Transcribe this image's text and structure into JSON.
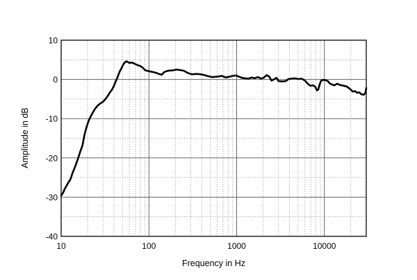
{
  "chart_data": {
    "type": "line",
    "xlabel": "Frequency in Hz",
    "ylabel": "Amplitude in dB",
    "x_scale": "log",
    "xlim": [
      10,
      30000
    ],
    "ylim": [
      -40,
      10
    ],
    "x_ticks": [
      10,
      100,
      1000,
      10000
    ],
    "x_tick_labels": [
      "10",
      "100",
      "1000",
      "10000"
    ],
    "y_ticks": [
      10,
      0,
      -10,
      -20,
      -30,
      -40
    ],
    "y_tick_labels": [
      "10",
      "0",
      "-10",
      "-20",
      "-30",
      "-40"
    ],
    "grid": true,
    "series": [
      {
        "name": "",
        "color": "#000000",
        "points": [
          [
            10,
            -29.6
          ],
          [
            10.5,
            -28.9
          ],
          [
            11,
            -27.9
          ],
          [
            11.5,
            -27.1
          ],
          [
            12,
            -26.4
          ],
          [
            12.8,
            -25.4
          ],
          [
            13.5,
            -23.8
          ],
          [
            14.5,
            -22.1
          ],
          [
            15.5,
            -20.3
          ],
          [
            16.5,
            -18.4
          ],
          [
            17.5,
            -16.8
          ],
          [
            18.5,
            -14.0
          ],
          [
            19.5,
            -12.1
          ],
          [
            20.5,
            -10.6
          ],
          [
            21.5,
            -9.6
          ],
          [
            23,
            -8.4
          ],
          [
            24.5,
            -7.4
          ],
          [
            26,
            -6.7
          ],
          [
            28,
            -6.1
          ],
          [
            30,
            -5.7
          ],
          [
            32,
            -5.0
          ],
          [
            34,
            -4.2
          ],
          [
            36,
            -3.3
          ],
          [
            38,
            -2.6
          ],
          [
            40,
            -1.6
          ],
          [
            42,
            -0.4
          ],
          [
            44,
            0.6
          ],
          [
            46,
            1.8
          ],
          [
            48,
            2.6
          ],
          [
            50,
            3.4
          ],
          [
            52,
            4.1
          ],
          [
            54,
            4.5
          ],
          [
            56,
            4.6
          ],
          [
            58,
            4.4
          ],
          [
            60,
            4.2
          ],
          [
            63,
            4.3
          ],
          [
            66,
            4.2
          ],
          [
            70,
            3.9
          ],
          [
            75,
            3.6
          ],
          [
            80,
            3.4
          ],
          [
            85,
            3.0
          ],
          [
            90,
            2.4
          ],
          [
            95,
            2.2
          ],
          [
            100,
            2.1
          ],
          [
            110,
            1.9
          ],
          [
            120,
            1.7
          ],
          [
            130,
            1.4
          ],
          [
            140,
            1.2
          ],
          [
            150,
            1.9
          ],
          [
            165,
            2.2
          ],
          [
            185,
            2.3
          ],
          [
            205,
            2.5
          ],
          [
            225,
            2.4
          ],
          [
            250,
            2.2
          ],
          [
            280,
            1.6
          ],
          [
            310,
            1.3
          ],
          [
            350,
            1.4
          ],
          [
            390,
            1.3
          ],
          [
            430,
            1.1
          ],
          [
            480,
            0.8
          ],
          [
            530,
            0.6
          ],
          [
            600,
            0.7
          ],
          [
            680,
            0.9
          ],
          [
            750,
            0.5
          ],
          [
            830,
            0.7
          ],
          [
            900,
            0.9
          ],
          [
            980,
            1.0
          ],
          [
            1060,
            0.7
          ],
          [
            1150,
            0.4
          ],
          [
            1250,
            0.3
          ],
          [
            1360,
            0.2
          ],
          [
            1480,
            0.5
          ],
          [
            1600,
            0.3
          ],
          [
            1750,
            0.6
          ],
          [
            1900,
            0.2
          ],
          [
            2050,
            0.5
          ],
          [
            2200,
            1.1
          ],
          [
            2350,
            0.7
          ],
          [
            2500,
            -0.3
          ],
          [
            2700,
            0.1
          ],
          [
            2850,
            0.4
          ],
          [
            3000,
            -0.4
          ],
          [
            3300,
            -0.5
          ],
          [
            3650,
            -0.4
          ],
          [
            3900,
            0.1
          ],
          [
            4200,
            0.2
          ],
          [
            4600,
            0.3
          ],
          [
            5000,
            0.1
          ],
          [
            5500,
            0.2
          ],
          [
            6000,
            -0.3
          ],
          [
            6400,
            -1.0
          ],
          [
            6900,
            -1.6
          ],
          [
            7400,
            -1.5
          ],
          [
            7900,
            -1.9
          ],
          [
            8200,
            -2.8
          ],
          [
            8500,
            -2.6
          ],
          [
            8800,
            -1.3
          ],
          [
            9200,
            -0.3
          ],
          [
            9700,
            -0.1
          ],
          [
            10300,
            -0.2
          ],
          [
            10900,
            -0.4
          ],
          [
            11500,
            -1.0
          ],
          [
            12200,
            -1.3
          ],
          [
            13000,
            -1.5
          ],
          [
            14000,
            -1.1
          ],
          [
            15000,
            -1.4
          ],
          [
            16500,
            -1.6
          ],
          [
            18000,
            -1.8
          ],
          [
            19500,
            -2.4
          ],
          [
            21000,
            -3.1
          ],
          [
            22500,
            -3.0
          ],
          [
            23500,
            -3.4
          ],
          [
            25000,
            -3.3
          ],
          [
            26500,
            -3.8
          ],
          [
            28000,
            -3.9
          ],
          [
            29300,
            -3.5
          ],
          [
            30000,
            -2.2
          ]
        ]
      }
    ]
  }
}
